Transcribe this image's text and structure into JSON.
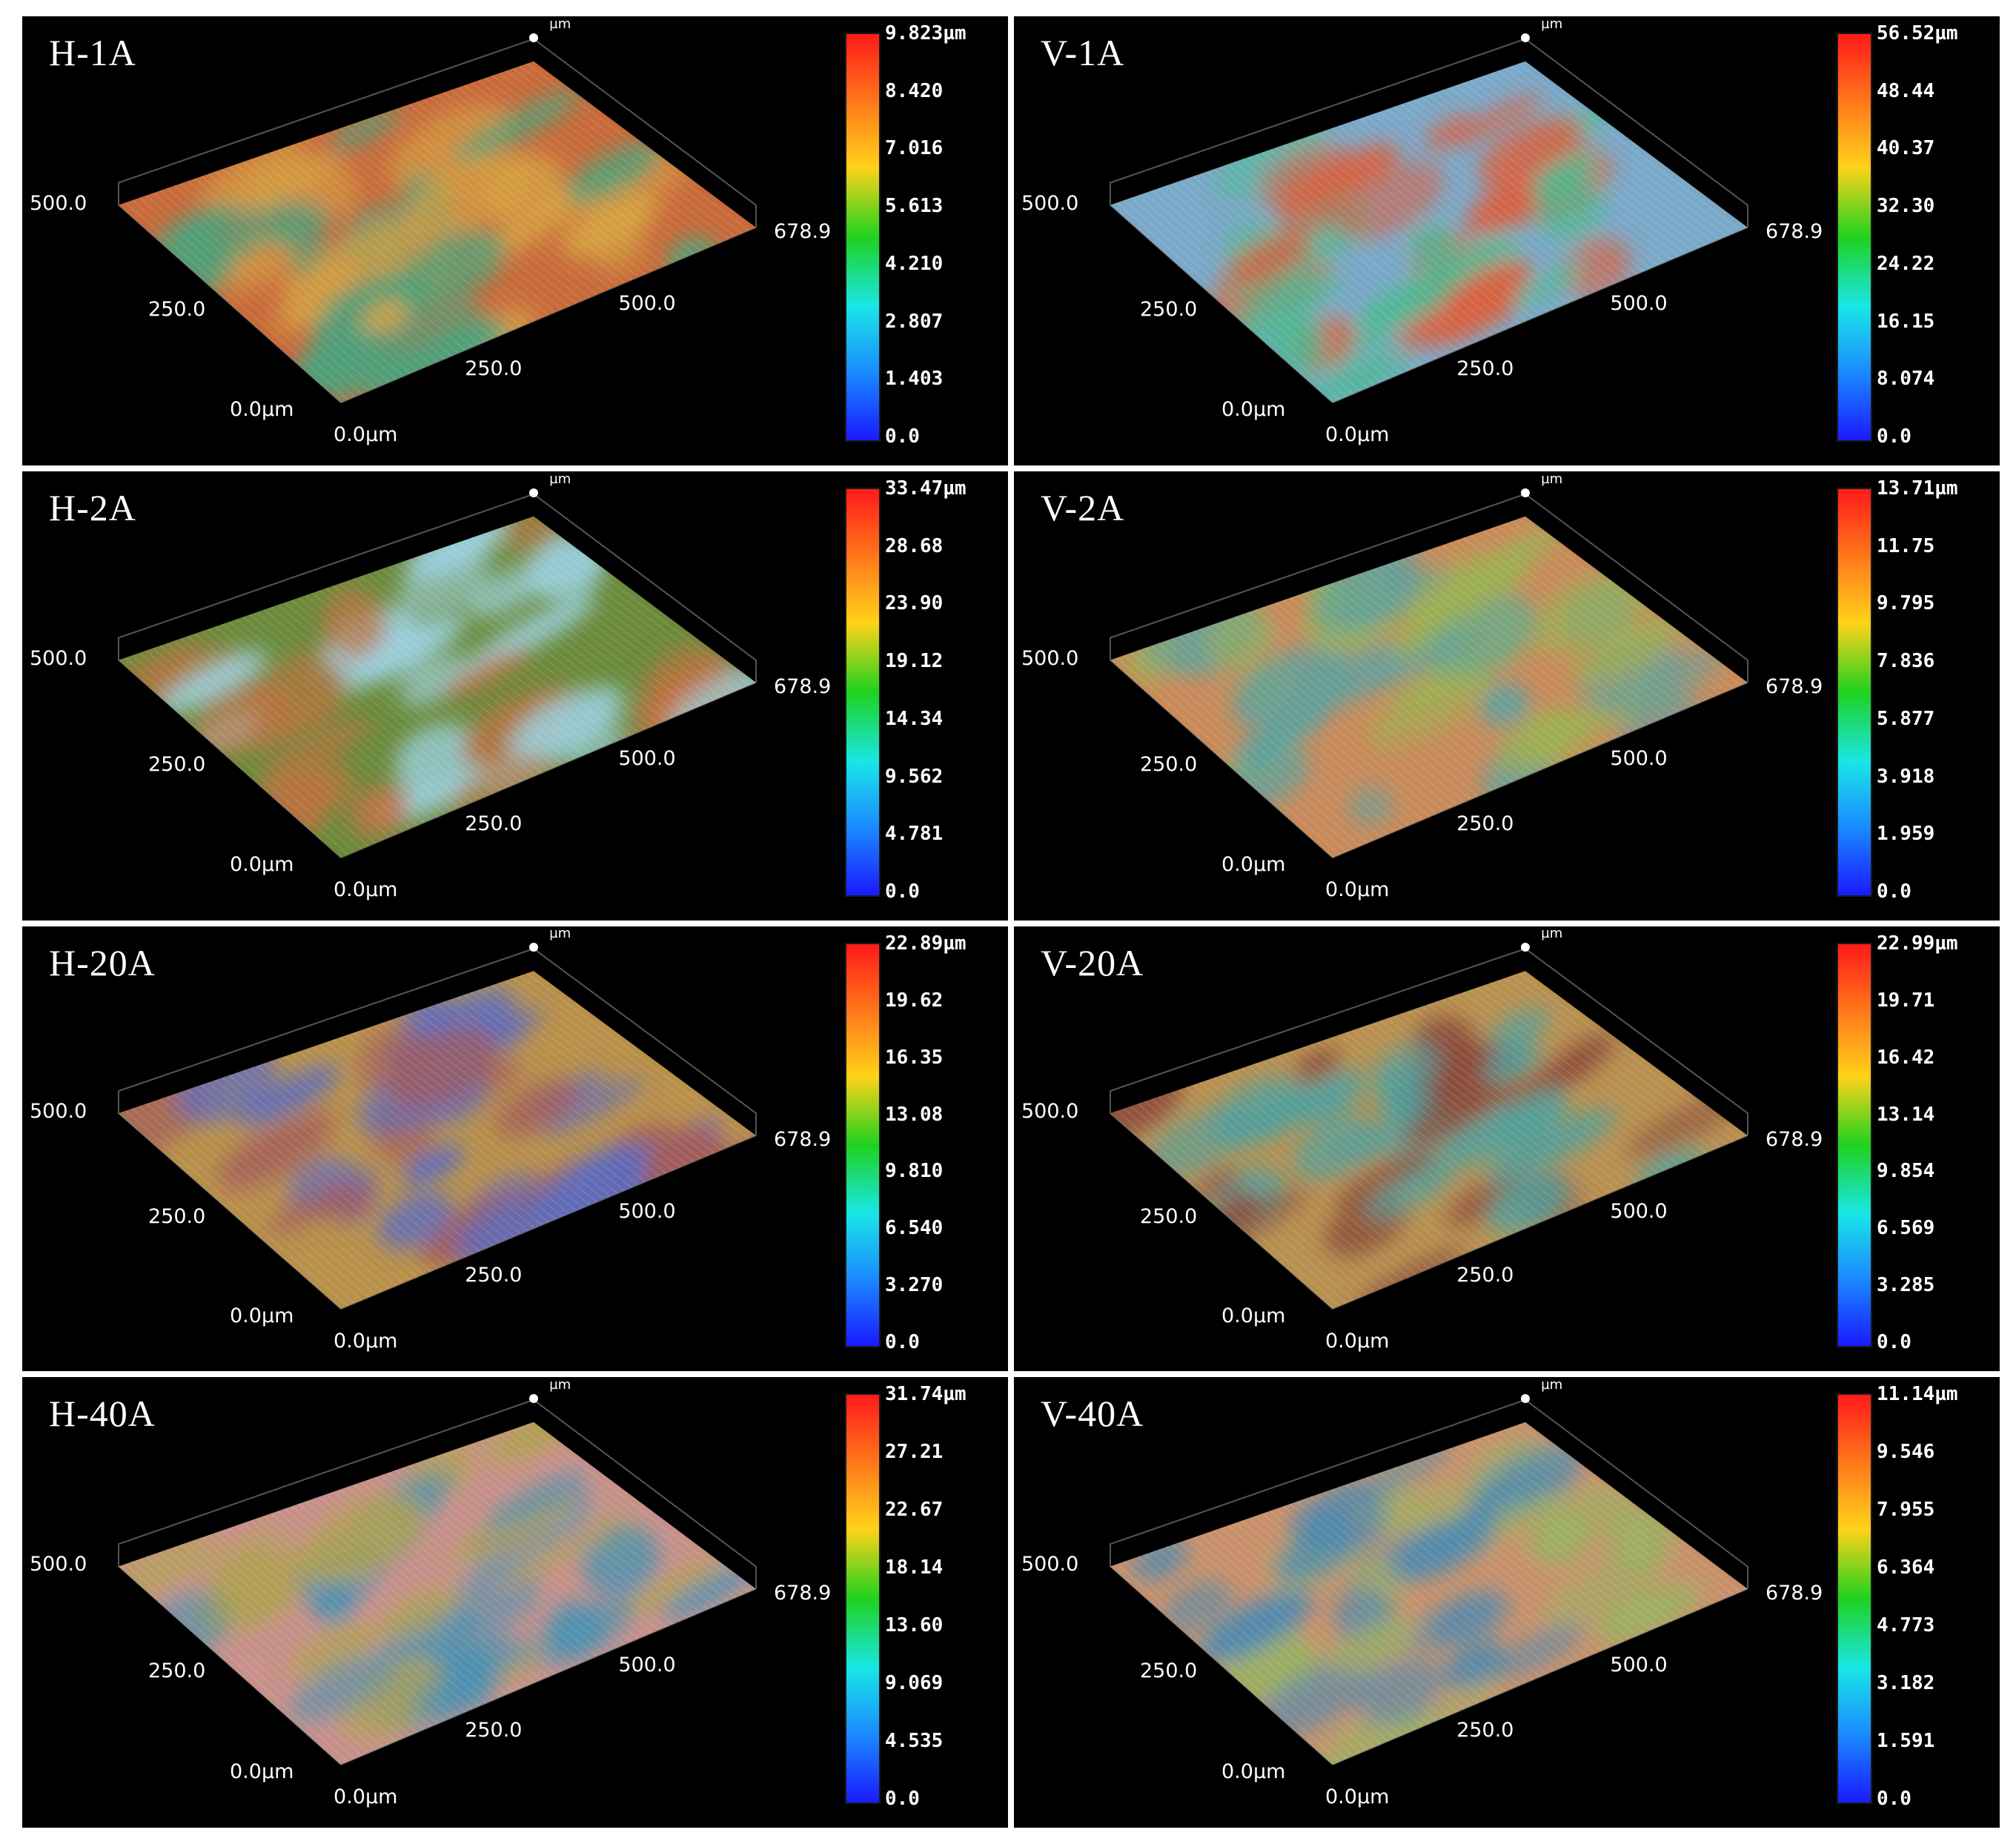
{
  "colormap": [
    "#ff1a1a",
    "#ff7a1a",
    "#ffd21a",
    "#1ed21e",
    "#1ae6e6",
    "#1a8cff",
    "#1a1aff"
  ],
  "panels": [
    {
      "id": "H-1A",
      "label": "H-1A",
      "z_max": "9.823",
      "z_unit": "µm",
      "colorbar": [
        "9.823µm",
        "8.420",
        "7.016",
        "5.613",
        "4.210",
        "2.807",
        "1.403",
        "0.0"
      ],
      "axis_labels": [
        "500.0",
        "250.0",
        "0.0µm",
        "0.0µm",
        "250.0",
        "500.0",
        "678.9"
      ],
      "palette": [
        "#c86a3a",
        "#4aa07a",
        "#d4a040"
      ]
    },
    {
      "id": "V-1A",
      "label": "V-1A",
      "z_max": "56.52",
      "z_unit": "µm",
      "colorbar": [
        "56.52µm",
        "48.44",
        "40.37",
        "32.30",
        "24.22",
        "16.15",
        "8.074",
        "0.0"
      ],
      "axis_labels": [
        "500.0",
        "250.0",
        "0.0µm",
        "0.0µm",
        "250.0",
        "500.0",
        "678.9"
      ],
      "palette": [
        "#7aa8c8",
        "#4ab890",
        "#d86040"
      ]
    },
    {
      "id": "H-2A",
      "label": "H-2A",
      "z_max": "33.47",
      "z_unit": "µm",
      "colorbar": [
        "33.47µm",
        "28.68",
        "23.90",
        "19.12",
        "14.34",
        "9.562",
        "4.781",
        "0.0"
      ],
      "axis_labels": [
        "500.0",
        "250.0",
        "0.0µm",
        "0.0µm",
        "250.0",
        "500.0",
        "678.9"
      ],
      "palette": [
        "#6a8a3a",
        "#9ad0e0",
        "#c07040"
      ]
    },
    {
      "id": "V-2A",
      "label": "V-2A",
      "z_max": "13.71",
      "z_unit": "µm",
      "colorbar": [
        "13.71µm",
        "11.75",
        "9.795",
        "7.836",
        "5.877",
        "3.918",
        "1.959",
        "0.0"
      ],
      "axis_labels": [
        "500.0",
        "250.0",
        "0.0µm",
        "0.0µm",
        "250.0",
        "500.0",
        "678.9"
      ],
      "palette": [
        "#c88a5a",
        "#5aa0a0",
        "#9ab050"
      ]
    },
    {
      "id": "H-20A",
      "label": "H-20A",
      "z_max": "22.89",
      "z_unit": "µm",
      "colorbar": [
        "22.89µm",
        "19.62",
        "16.35",
        "13.08",
        "9.810",
        "6.540",
        "3.270",
        "0.0"
      ],
      "axis_labels": [
        "500.0",
        "250.0",
        "0.0µm",
        "0.0µm",
        "250.0",
        "500.0",
        "678.9"
      ],
      "palette": [
        "#b8904a",
        "#5a6ac0",
        "#a05a5a"
      ]
    },
    {
      "id": "V-20A",
      "label": "V-20A",
      "z_max": "22.99",
      "z_unit": "µm",
      "colorbar": [
        "22.99µm",
        "19.71",
        "16.42",
        "13.14",
        "9.854",
        "6.569",
        "3.285",
        "0.0"
      ],
      "axis_labels": [
        "500.0",
        "250.0",
        "0.0µm",
        "0.0µm",
        "250.0",
        "500.0",
        "678.9"
      ],
      "palette": [
        "#b89050",
        "#4aa0a0",
        "#8a4a3a"
      ]
    },
    {
      "id": "H-40A",
      "label": "H-40A",
      "z_max": "31.74",
      "z_unit": "µm",
      "colorbar": [
        "31.74µm",
        "27.21",
        "22.67",
        "18.14",
        "13.60",
        "9.069",
        "4.535",
        "0.0"
      ],
      "axis_labels": [
        "500.0",
        "250.0",
        "0.0µm",
        "0.0µm",
        "250.0",
        "500.0",
        "678.9"
      ],
      "palette": [
        "#c8908a",
        "#4a90b0",
        "#b0a050"
      ]
    },
    {
      "id": "V-40A",
      "label": "V-40A",
      "z_max": "11.14",
      "z_unit": "µm",
      "colorbar": [
        "11.14µm",
        "9.546",
        "7.955",
        "6.364",
        "4.773",
        "3.182",
        "1.591",
        "0.0"
      ],
      "axis_labels": [
        "500.0",
        "250.0",
        "0.0µm",
        "0.0µm",
        "250.0",
        "500.0",
        "678.9"
      ],
      "palette": [
        "#c8906a",
        "#4a88b0",
        "#9ab060"
      ]
    }
  ]
}
